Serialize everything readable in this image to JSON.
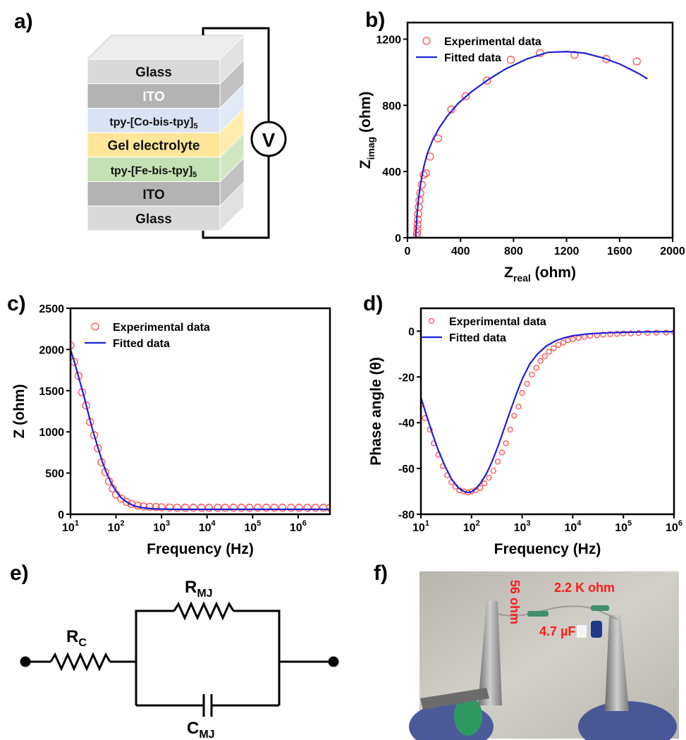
{
  "panels": {
    "a": {
      "label": "a)",
      "layers": [
        {
          "name": "Glass",
          "color": "#d9d9d9"
        },
        {
          "name": "ITO",
          "color": "#b3b3b3"
        },
        {
          "name": "tpy-[Co-bis-tpy]",
          "sub": "5",
          "color": "#dae3f3"
        },
        {
          "name": "Gel electrolyte",
          "color": "#ffe699"
        },
        {
          "name": "tpy-[Fe-bis-tpy]",
          "sub": "5",
          "color": "#c5e0b4"
        },
        {
          "name": "ITO",
          "color": "#b3b3b3"
        },
        {
          "name": "Glass",
          "color": "#d9d9d9"
        }
      ],
      "meter": "V"
    },
    "b": {
      "label": "b)"
    },
    "c": {
      "label": "c)"
    },
    "d": {
      "label": "d)"
    },
    "e": {
      "label": "e)",
      "rc": {
        "main": "R",
        "sub": "C"
      },
      "rmj": {
        "main": "R",
        "sub": "MJ"
      },
      "cmj": {
        "main": "C",
        "sub": "MJ"
      }
    },
    "f": {
      "label": "f)",
      "annotations": {
        "r1": "56 ohm",
        "r2": "2.2 K ohm",
        "cap": "4.7 µF"
      }
    }
  },
  "chart_data": [
    {
      "panel": "b",
      "type": "scatter",
      "xlabel": "Z",
      "xlabel_sub": "real",
      "xlabel_unit": " (ohm)",
      "ylabel": "Z",
      "ylabel_sub": "imag",
      "ylabel_unit": " (ohm)",
      "xlim": [
        0,
        2000
      ],
      "ylim": [
        0,
        1300
      ],
      "xticks": [
        0,
        400,
        800,
        1200,
        1600,
        2000
      ],
      "yticks": [
        0,
        400,
        800,
        1200
      ],
      "legend": "top-left",
      "series": [
        {
          "name": "Experimental data",
          "style": "markers",
          "color": "#ff4d4d",
          "x": [
            70,
            72,
            74,
            76,
            78,
            81,
            85,
            90,
            97,
            108,
            122,
            140,
            170,
            230,
            330,
            440,
            600,
            780,
            1000,
            1260,
            1500,
            1730
          ],
          "y": [
            10,
            30,
            55,
            80,
            110,
            145,
            185,
            225,
            270,
            320,
            380,
            390,
            490,
            600,
            775,
            855,
            950,
            1075,
            1115,
            1105,
            1080,
            1065
          ]
        },
        {
          "name": "Fitted data",
          "style": "line",
          "color": "#1f1fd6",
          "x": [
            62,
            64,
            68,
            72,
            78,
            85,
            95,
            108,
            125,
            150,
            190,
            240,
            300,
            380,
            480,
            600,
            740,
            900,
            1060,
            1200,
            1340,
            1480,
            1600,
            1700,
            1760,
            1810
          ],
          "y": [
            0,
            40,
            90,
            140,
            190,
            245,
            305,
            370,
            435,
            510,
            590,
            665,
            735,
            810,
            880,
            950,
            1020,
            1080,
            1120,
            1125,
            1115,
            1085,
            1050,
            1010,
            985,
            960
          ]
        }
      ]
    },
    {
      "panel": "c",
      "type": "scatter",
      "xlabel": "Frequency (Hz)",
      "ylabel": "Z (ohm)",
      "xscale": "log",
      "xlim": [
        10,
        5000000
      ],
      "ylim": [
        0,
        2500
      ],
      "xticks": [
        1,
        2,
        3,
        4,
        5,
        6
      ],
      "yticks": [
        0,
        500,
        1000,
        1500,
        2000,
        2500
      ],
      "legend": "top-center",
      "series": [
        {
          "name": "Experimental data",
          "style": "markers",
          "color": "#ff4d4d",
          "x": [
            10,
            12,
            15,
            18,
            22,
            27,
            33,
            40,
            48,
            58,
            70,
            85,
            100,
            130,
            170,
            220,
            300,
            400,
            550,
            750,
            1000,
            1500,
            2200,
            3300,
            5000,
            7500,
            11000,
            17000,
            25000,
            38000,
            57000,
            85000,
            130000,
            200000,
            300000,
            450000,
            700000,
            1050000,
            1600000,
            2400000,
            3600000,
            5000000
          ],
          "y": [
            2050,
            1850,
            1680,
            1480,
            1320,
            1120,
            960,
            800,
            630,
            510,
            400,
            310,
            240,
            190,
            150,
            125,
            105,
            95,
            90,
            88,
            85,
            82,
            80,
            80,
            80,
            80,
            80,
            80,
            80,
            80,
            80,
            80,
            80,
            80,
            80,
            80,
            80,
            80,
            80,
            80,
            80,
            80
          ]
        },
        {
          "name": "Fitted data",
          "style": "line",
          "color": "#1f1fd6",
          "x": [
            10,
            12,
            15,
            20,
            25,
            30,
            40,
            50,
            60,
            80,
            100,
            130,
            170,
            230,
            300,
            400,
            600,
            1000,
            2000,
            5000,
            20000,
            100000,
            1000000,
            5000000
          ],
          "y": [
            2000,
            1860,
            1670,
            1420,
            1210,
            1040,
            810,
            640,
            520,
            370,
            280,
            200,
            150,
            110,
            90,
            78,
            68,
            63,
            60,
            60,
            60,
            60,
            60,
            60
          ]
        }
      ]
    },
    {
      "panel": "d",
      "type": "scatter",
      "xlabel": "Frequency (Hz)",
      "ylabel": "Phase angle (θ)",
      "xscale": "log",
      "xlim": [
        10,
        1000000
      ],
      "ylim": [
        -80,
        10
      ],
      "xticks": [
        1,
        2,
        3,
        4,
        5,
        6
      ],
      "yticks": [
        -80,
        -60,
        -40,
        -20,
        0
      ],
      "legend": "top-left",
      "series": [
        {
          "name": "Experimental data",
          "style": "markers",
          "color": "#ff4d4d",
          "x": [
            10,
            12,
            15,
            18,
            22,
            27,
            33,
            40,
            48,
            58,
            70,
            85,
            100,
            120,
            150,
            180,
            220,
            270,
            330,
            400,
            480,
            580,
            700,
            850,
            1000,
            1250,
            1550,
            1900,
            2300,
            2800,
            3400,
            4200,
            5200,
            6500,
            8000,
            10000,
            13000,
            17000,
            22000,
            30000,
            40000,
            55000,
            75000,
            100000,
            140000,
            200000,
            300000,
            450000,
            700000,
            1000000
          ],
          "y": [
            -32,
            -38,
            -43,
            -49,
            -54,
            -59,
            -63,
            -66,
            -68,
            -69.5,
            -70,
            -70.5,
            -70,
            -69.5,
            -68.5,
            -66.5,
            -64,
            -61,
            -57,
            -53,
            -49,
            -43,
            -37,
            -33,
            -27,
            -23,
            -19,
            -16,
            -13,
            -11,
            -9,
            -7.5,
            -6,
            -5,
            -4,
            -3.5,
            -3,
            -2.5,
            -2,
            -1.8,
            -1.5,
            -1.3,
            -1.2,
            -1,
            -1,
            -0.8,
            -0.8,
            -0.7,
            -0.6,
            -0.5
          ]
        },
        {
          "name": "Fitted data",
          "style": "line",
          "color": "#1f1fd6",
          "x": [
            10,
            13,
            17,
            22,
            30,
            40,
            55,
            70,
            85,
            100,
            120,
            150,
            200,
            260,
            350,
            450,
            600,
            800,
            1000,
            1400,
            2000,
            3000,
            4500,
            7000,
            10000,
            20000,
            50000,
            100000,
            300000,
            1000000
          ],
          "y": [
            -29,
            -37,
            -45,
            -52,
            -59,
            -64.5,
            -68.5,
            -70,
            -70.5,
            -70.2,
            -69,
            -66.5,
            -62,
            -56.5,
            -49,
            -42,
            -34,
            -26.5,
            -21,
            -14.5,
            -10,
            -6.5,
            -4.3,
            -2.8,
            -2,
            -1.2,
            -0.7,
            -0.5,
            -0.3,
            -0.2
          ]
        }
      ]
    }
  ]
}
